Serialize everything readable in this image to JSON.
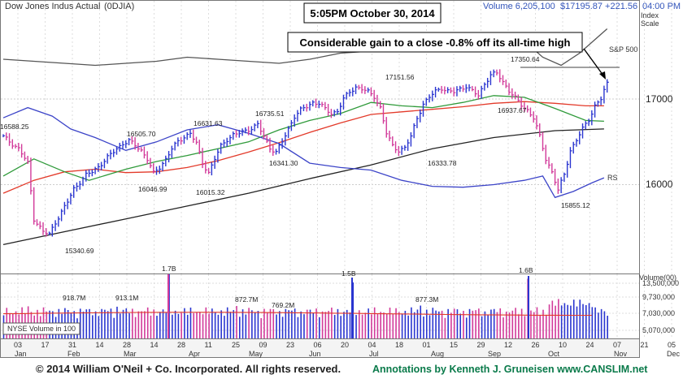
{
  "header": {
    "index_name": "Dow Jones Indus Actual",
    "symbol": "(0DJIA)",
    "volume_label": "Volume 6,205,100",
    "price_change": "$17195.87 +221.56",
    "time": "04:00 PM ET"
  },
  "timestamp_box": "5:05PM October 30, 2014",
  "annotation_box": "Considerable gain to a close -0.8% off its all-time high",
  "right_labels": {
    "index_scale_line1": "Index",
    "index_scale_line2": "Scale",
    "sp500": "S&P 500",
    "rs": "RS"
  },
  "colors": {
    "up_bar": "#2a35d0",
    "down_bar": "#d23a9a",
    "ma50": "#2f9a3a",
    "ma100": "#e33a2a",
    "ma200": "#222222",
    "rs_line": "#3c44c8",
    "sp500_line": "#555555",
    "volume_avg": "#e33a2a"
  },
  "footer": {
    "copyright": "© 2014 William O'Neil + Co. Incorporated. All rights reserved.",
    "annotations": "Annotations by Kenneth J. Gruneisen www.CANSLIM.net"
  },
  "chart_data": {
    "type": "bar",
    "subtype": "ohlc",
    "y_axis": {
      "ticks": [
        "17000",
        "16000"
      ]
    },
    "volume_axis": {
      "title": "Volume(00)",
      "ticks": [
        "13,500,000",
        "9,730,000",
        "7,030,000",
        "5,070,000"
      ],
      "label": "NYSE Volume in 100"
    },
    "x_day_labels": [
      "03",
      "17",
      "31",
      "14",
      "28",
      "14",
      "28",
      "11",
      "25",
      "09",
      "23",
      "06",
      "20",
      "04",
      "18",
      "01",
      "15",
      "29",
      "12",
      "26",
      "10",
      "24",
      "07",
      "21",
      "05"
    ],
    "x_month_labels": [
      "Jan",
      "Feb",
      "Mar",
      "Apr",
      "May",
      "Jun",
      "Jul",
      "Aug",
      "Sep",
      "Oct",
      "Nov",
      "Dec"
    ],
    "price_annotations": [
      "16588.25",
      "16505.70",
      "16631.63",
      "16735.51",
      "17151.56",
      "17350.64",
      "15340.69",
      "16046.99",
      "16015.32",
      "16341.30",
      "16333.78",
      "16937.67",
      "15855.12"
    ],
    "volume_annotations": [
      "918.7M",
      "913.1M",
      "1.7B",
      "872.7M",
      "769.2M",
      "1.5B",
      "877.3M",
      "1.6B"
    ],
    "price_path": [
      [
        0,
        16560
      ],
      [
        5,
        16420
      ],
      [
        8,
        16250
      ],
      [
        10,
        15600
      ],
      [
        13,
        15450
      ],
      [
        15,
        15420
      ],
      [
        17,
        15560
      ],
      [
        19,
        15680
      ],
      [
        21,
        15800
      ],
      [
        23,
        15950
      ],
      [
        25,
        16030
      ],
      [
        27,
        16110
      ],
      [
        29,
        16150
      ],
      [
        31,
        16210
      ],
      [
        33,
        16280
      ],
      [
        35,
        16350
      ],
      [
        37,
        16420
      ],
      [
        39,
        16480
      ],
      [
        41,
        16510
      ],
      [
        43,
        16460
      ],
      [
        45,
        16400
      ],
      [
        47,
        16300
      ],
      [
        49,
        16130
      ],
      [
        51,
        16200
      ],
      [
        53,
        16300
      ],
      [
        55,
        16420
      ],
      [
        57,
        16500
      ],
      [
        59,
        16560
      ],
      [
        61,
        16600
      ],
      [
        63,
        16480
      ],
      [
        65,
        16250
      ],
      [
        67,
        16140
      ],
      [
        69,
        16300
      ],
      [
        71,
        16450
      ],
      [
        73,
        16530
      ],
      [
        75,
        16580
      ],
      [
        77,
        16600
      ],
      [
        79,
        16630
      ],
      [
        81,
        16660
      ],
      [
        83,
        16700
      ],
      [
        85,
        16560
      ],
      [
        87,
        16430
      ],
      [
        89,
        16380
      ],
      [
        91,
        16500
      ],
      [
        93,
        16650
      ],
      [
        95,
        16800
      ],
      [
        97,
        16870
      ],
      [
        99,
        16910
      ],
      [
        101,
        16960
      ],
      [
        103,
        16950
      ],
      [
        105,
        16880
      ],
      [
        107,
        16830
      ],
      [
        109,
        16860
      ],
      [
        111,
        17000
      ],
      [
        113,
        17080
      ],
      [
        115,
        17140
      ],
      [
        117,
        17120
      ],
      [
        119,
        17080
      ],
      [
        121,
        17030
      ],
      [
        123,
        16900
      ],
      [
        125,
        16600
      ],
      [
        127,
        16450
      ],
      [
        129,
        16400
      ],
      [
        131,
        16430
      ],
      [
        133,
        16560
      ],
      [
        135,
        16780
      ],
      [
        137,
        16940
      ],
      [
        139,
        17020
      ],
      [
        141,
        17090
      ],
      [
        143,
        17130
      ],
      [
        145,
        17090
      ],
      [
        147,
        17080
      ],
      [
        149,
        17120
      ],
      [
        151,
        17150
      ],
      [
        153,
        17090
      ],
      [
        155,
        17040
      ],
      [
        157,
        17180
      ],
      [
        159,
        17280
      ],
      [
        161,
        17300
      ],
      [
        163,
        17200
      ],
      [
        165,
        17100
      ],
      [
        167,
        17010
      ],
      [
        169,
        16930
      ],
      [
        171,
        16870
      ],
      [
        173,
        16780
      ],
      [
        175,
        16560
      ],
      [
        177,
        16300
      ],
      [
        179,
        16150
      ],
      [
        181,
        15930
      ],
      [
        183,
        16120
      ],
      [
        185,
        16400
      ],
      [
        187,
        16520
      ],
      [
        189,
        16650
      ],
      [
        191,
        16760
      ],
      [
        193,
        16920
      ],
      [
        195,
        17000
      ],
      [
        197,
        17196
      ]
    ],
    "ma50_path": [
      [
        0,
        16100
      ],
      [
        10,
        16300
      ],
      [
        20,
        16150
      ],
      [
        28,
        16050
      ],
      [
        40,
        16180
      ],
      [
        50,
        16270
      ],
      [
        60,
        16340
      ],
      [
        70,
        16420
      ],
      [
        80,
        16500
      ],
      [
        90,
        16640
      ],
      [
        100,
        16750
      ],
      [
        110,
        16830
      ],
      [
        120,
        16960
      ],
      [
        130,
        16920
      ],
      [
        140,
        16900
      ],
      [
        150,
        16960
      ],
      [
        160,
        17040
      ],
      [
        170,
        17020
      ],
      [
        180,
        16890
      ],
      [
        190,
        16750
      ],
      [
        196,
        16740
      ]
    ],
    "ma100_path": [
      [
        0,
        15900
      ],
      [
        10,
        16050
      ],
      [
        20,
        16150
      ],
      [
        30,
        16180
      ],
      [
        40,
        16140
      ],
      [
        50,
        16150
      ],
      [
        60,
        16200
      ],
      [
        70,
        16280
      ],
      [
        80,
        16380
      ],
      [
        90,
        16490
      ],
      [
        100,
        16610
      ],
      [
        110,
        16720
      ],
      [
        120,
        16820
      ],
      [
        130,
        16850
      ],
      [
        140,
        16880
      ],
      [
        150,
        16910
      ],
      [
        160,
        16950
      ],
      [
        170,
        16970
      ],
      [
        180,
        16950
      ],
      [
        190,
        16920
      ],
      [
        196,
        16920
      ]
    ],
    "ma200_path": [
      [
        0,
        15300
      ],
      [
        20,
        15450
      ],
      [
        40,
        15600
      ],
      [
        60,
        15750
      ],
      [
        80,
        15900
      ],
      [
        100,
        16070
      ],
      [
        120,
        16230
      ],
      [
        140,
        16420
      ],
      [
        160,
        16550
      ],
      [
        180,
        16630
      ],
      [
        196,
        16650
      ]
    ],
    "rs_path": [
      [
        0,
        16780
      ],
      [
        8,
        16900
      ],
      [
        16,
        16800
      ],
      [
        22,
        16650
      ],
      [
        30,
        16550
      ],
      [
        40,
        16400
      ],
      [
        50,
        16500
      ],
      [
        60,
        16640
      ],
      [
        70,
        16700
      ],
      [
        80,
        16600
      ],
      [
        90,
        16480
      ],
      [
        100,
        16250
      ],
      [
        110,
        16200
      ],
      [
        120,
        16170
      ],
      [
        130,
        16050
      ],
      [
        140,
        15980
      ],
      [
        150,
        15970
      ],
      [
        160,
        16000
      ],
      [
        170,
        16050
      ],
      [
        176,
        16100
      ],
      [
        180,
        15850
      ],
      [
        186,
        15920
      ],
      [
        192,
        16020
      ],
      [
        196,
        16080
      ]
    ],
    "sp500_path": [
      [
        0,
        17470
      ],
      [
        10,
        17460
      ],
      [
        20,
        17450
      ],
      [
        30,
        17440
      ],
      [
        40,
        17450
      ],
      [
        50,
        17460
      ],
      [
        60,
        17480
      ],
      [
        70,
        17470
      ],
      [
        80,
        17460
      ],
      [
        90,
        17450
      ],
      [
        100,
        17470
      ],
      [
        110,
        17500
      ],
      [
        120,
        17510
      ],
      [
        130,
        17520
      ],
      [
        140,
        17520
      ],
      [
        150,
        17530
      ],
      [
        160,
        17540
      ],
      [
        170,
        17560
      ],
      [
        176,
        17480
      ],
      [
        182,
        17440
      ],
      [
        188,
        17500
      ],
      [
        194,
        17580
      ],
      [
        197,
        17620
      ]
    ]
  }
}
